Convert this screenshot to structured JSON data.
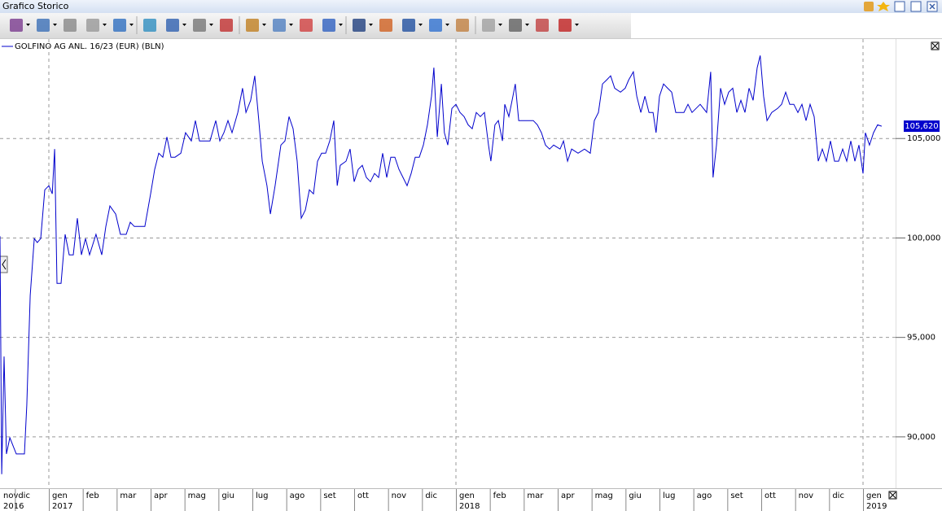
{
  "ui": {
    "window_title": "Grafico Storico"
  },
  "chart_data": {
    "type": "line",
    "series": [
      {
        "name": "GOLFINO AG ANL. 16/23 (EUR) (BLN)",
        "color": "#0000cc",
        "x": [
          -1.44,
          -1.39,
          -1.32,
          -1.25,
          -1.15,
          -0.96,
          -0.72,
          -0.65,
          -0.55,
          -0.43,
          -0.34,
          -0.24,
          -0.12,
          0,
          0.1,
          0.17,
          0.24,
          0.36,
          0.48,
          0.6,
          0.72,
          0.84,
          0.96,
          1.08,
          1.2,
          1.39,
          1.56,
          1.68,
          1.8,
          1.97,
          2.11,
          2.28,
          2.4,
          2.52,
          2.69,
          2.83,
          3.0,
          3.12,
          3.24,
          3.36,
          3.48,
          3.6,
          3.72,
          3.89,
          4.03,
          4.2,
          4.32,
          4.44,
          4.56,
          4.75,
          4.92,
          5.04,
          5.16,
          5.28,
          5.4,
          5.57,
          5.71,
          5.81,
          5.95,
          6.07,
          6.19,
          6.29,
          6.43,
          6.53,
          6.67,
          6.84,
          6.96,
          7.08,
          7.2,
          7.32,
          7.44,
          7.56,
          7.68,
          7.8,
          7.92,
          8.04,
          8.16,
          8.28,
          8.4,
          8.5,
          8.59,
          8.76,
          8.88,
          9.0,
          9.12,
          9.24,
          9.36,
          9.48,
          9.6,
          9.72,
          9.84,
          9.96,
          10.08,
          10.2,
          10.32,
          10.44,
          10.56,
          10.68,
          10.8,
          10.92,
          11.04,
          11.16,
          11.28,
          11.35,
          11.45,
          11.57,
          11.66,
          11.76,
          11.88,
          12.0,
          12.12,
          12.24,
          12.36,
          12.48,
          12.6,
          12.72,
          12.84,
          12.96,
          13.03,
          13.15,
          13.25,
          13.37,
          13.44,
          13.56,
          13.68,
          13.75,
          13.85,
          14.04,
          14.28,
          14.4,
          14.52,
          14.64,
          14.76,
          14.88,
          15.07,
          15.17,
          15.29,
          15.41,
          15.6,
          15.79,
          15.96,
          16.08,
          16.2,
          16.32,
          16.44,
          16.56,
          16.68,
          16.85,
          16.99,
          17.09,
          17.23,
          17.33,
          17.45,
          17.57,
          17.69,
          17.81,
          17.9,
          18.0,
          18.12,
          18.24,
          18.36,
          18.48,
          18.72,
          18.84,
          18.96,
          19.2,
          19.39,
          19.51,
          19.58,
          19.68,
          19.8,
          19.92,
          20.04,
          20.16,
          20.28,
          20.4,
          20.52,
          20.64,
          20.76,
          20.88,
          20.97,
          21.07,
          21.17,
          21.31,
          21.48,
          21.6,
          21.72,
          21.84,
          21.96,
          22.08,
          22.2,
          22.32,
          22.44,
          22.56,
          22.68,
          22.8,
          22.92,
          23.04,
          23.16,
          23.28,
          23.4,
          23.52,
          23.64,
          23.76,
          23.88,
          24.0,
          24.07,
          24.19,
          24.31,
          24.43,
          24.55
        ],
        "values": [
          100.09,
          88.12,
          94.04,
          89.14,
          89.96,
          89.14,
          89.14,
          91.59,
          97.11,
          99.97,
          99.77,
          99.97,
          102.42,
          102.63,
          102.22,
          104.47,
          97.72,
          97.72,
          100.18,
          99.15,
          99.15,
          100.99,
          99.15,
          99.97,
          99.15,
          100.18,
          99.15,
          100.58,
          101.61,
          101.2,
          100.18,
          100.18,
          100.79,
          100.58,
          100.58,
          100.58,
          102.22,
          103.45,
          104.26,
          104.06,
          105.08,
          104.06,
          104.06,
          104.26,
          105.29,
          104.88,
          105.9,
          104.88,
          104.88,
          104.88,
          105.9,
          104.88,
          105.29,
          105.9,
          105.29,
          106.31,
          107.53,
          106.31,
          106.92,
          108.15,
          105.9,
          103.86,
          102.63,
          101.2,
          102.63,
          104.67,
          104.88,
          106.1,
          105.49,
          103.86,
          100.99,
          101.4,
          102.42,
          102.22,
          103.86,
          104.26,
          104.26,
          104.88,
          105.9,
          102.63,
          103.65,
          103.86,
          104.47,
          102.83,
          103.45,
          103.65,
          103.04,
          102.83,
          103.24,
          103.04,
          104.26,
          103.04,
          104.06,
          104.06,
          103.45,
          103.04,
          102.63,
          103.24,
          104.06,
          104.06,
          104.67,
          105.69,
          107.13,
          108.56,
          105.08,
          107.74,
          105.29,
          104.67,
          106.51,
          106.72,
          106.31,
          106.1,
          105.69,
          105.49,
          106.31,
          106.1,
          106.31,
          104.67,
          103.86,
          105.69,
          105.9,
          104.88,
          106.72,
          106.1,
          107.13,
          107.74,
          105.9,
          105.9,
          105.9,
          105.69,
          105.29,
          104.67,
          104.47,
          104.67,
          104.47,
          104.88,
          103.86,
          104.47,
          104.26,
          104.47,
          104.26,
          105.9,
          106.31,
          107.74,
          107.94,
          108.15,
          107.53,
          107.33,
          107.53,
          107.94,
          108.35,
          107.13,
          106.31,
          107.13,
          106.31,
          106.31,
          105.29,
          107.13,
          107.74,
          107.53,
          107.33,
          106.31,
          106.31,
          106.72,
          106.31,
          106.72,
          106.31,
          108.35,
          103.04,
          104.67,
          107.53,
          106.72,
          107.33,
          107.53,
          106.31,
          106.92,
          106.31,
          107.53,
          106.92,
          108.56,
          109.17,
          107.13,
          105.9,
          106.31,
          106.51,
          106.72,
          107.33,
          106.72,
          106.72,
          106.31,
          106.72,
          105.9,
          106.72,
          106.1,
          103.86,
          104.47,
          103.86,
          104.88,
          103.86,
          103.86,
          104.47,
          103.86,
          104.88,
          103.86,
          104.67,
          103.24,
          105.29,
          104.67,
          105.29,
          105.69,
          105.62
        ]
      }
    ],
    "current": {
      "value": 105.62,
      "label": "105,620"
    },
    "xlim": [
      -1.44,
      24.96
    ],
    "ylim": [
      87.5,
      110
    ],
    "yticks": [
      {
        "value": 90,
        "label": "90,000"
      },
      {
        "value": 95,
        "label": "95,000"
      },
      {
        "value": 100,
        "label": "100,000"
      },
      {
        "value": 105,
        "label": "105,000"
      }
    ],
    "xticks": [
      {
        "value": -2,
        "label": "nov"
      },
      {
        "value": -1,
        "label": "dic"
      },
      {
        "value": 0,
        "label": "gen"
      },
      {
        "value": 1,
        "label": "feb"
      },
      {
        "value": 2,
        "label": "mar"
      },
      {
        "value": 3,
        "label": "apr"
      },
      {
        "value": 4,
        "label": "mag"
      },
      {
        "value": 5,
        "label": "giu"
      },
      {
        "value": 6,
        "label": "lug"
      },
      {
        "value": 7,
        "label": "ago"
      },
      {
        "value": 8,
        "label": "set"
      },
      {
        "value": 9,
        "label": "ott"
      },
      {
        "value": 10,
        "label": "nov"
      },
      {
        "value": 11,
        "label": "dic"
      },
      {
        "value": 12,
        "label": "gen"
      },
      {
        "value": 13,
        "label": "feb"
      },
      {
        "value": 14,
        "label": "mar"
      },
      {
        "value": 15,
        "label": "apr"
      },
      {
        "value": 16,
        "label": "mag"
      },
      {
        "value": 17,
        "label": "giu"
      },
      {
        "value": 18,
        "label": "lug"
      },
      {
        "value": 19,
        "label": "ago"
      },
      {
        "value": 20,
        "label": "set"
      },
      {
        "value": 21,
        "label": "ott"
      },
      {
        "value": 22,
        "label": "nov"
      },
      {
        "value": 23,
        "label": "dic"
      },
      {
        "value": 24,
        "label": "gen"
      }
    ],
    "xyears": [
      {
        "value": -2,
        "label": "2016"
      },
      {
        "value": 0,
        "label": "2017"
      },
      {
        "value": 12,
        "label": "2018"
      },
      {
        "value": 24,
        "label": "2019"
      }
    ],
    "grid": true
  }
}
